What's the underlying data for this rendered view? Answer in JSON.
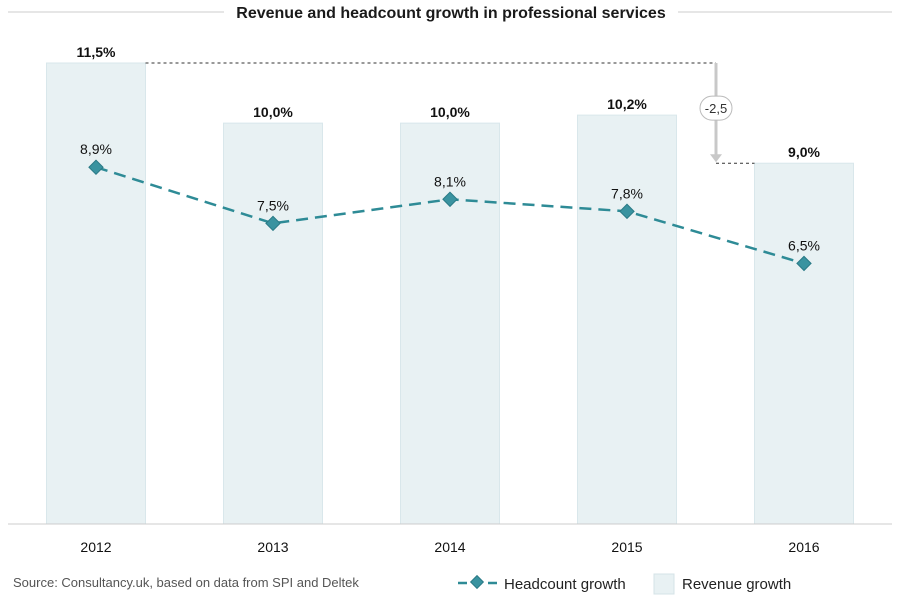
{
  "chart_data": {
    "type": "bar",
    "title": "Revenue and headcount growth in professional services",
    "categories": [
      "2012",
      "2013",
      "2014",
      "2015",
      "2016"
    ],
    "series": [
      {
        "name": "Revenue growth",
        "type": "bar",
        "values": [
          11.5,
          10.0,
          10.0,
          10.2,
          9.0
        ],
        "labels": [
          "11,5%",
          "10,0%",
          "10,0%",
          "10,2%",
          "9,0%"
        ],
        "color": "#e8f1f3"
      },
      {
        "name": "Headcount growth",
        "type": "line",
        "style": "dashed",
        "marker": "diamond",
        "values": [
          8.9,
          7.5,
          8.1,
          7.8,
          6.5
        ],
        "labels": [
          "8,9%",
          "7,5%",
          "8,1%",
          "7,8%",
          "6,5%"
        ],
        "color": "#2e8b96"
      }
    ],
    "annotation": {
      "text": "-2,5",
      "from": "2012",
      "to": "2016"
    },
    "ylim": [
      0,
      11.5
    ],
    "grid": false,
    "legend": "bottom-right"
  },
  "source": "Source: Consultancy.uk, based on data from SPI and Deltek"
}
